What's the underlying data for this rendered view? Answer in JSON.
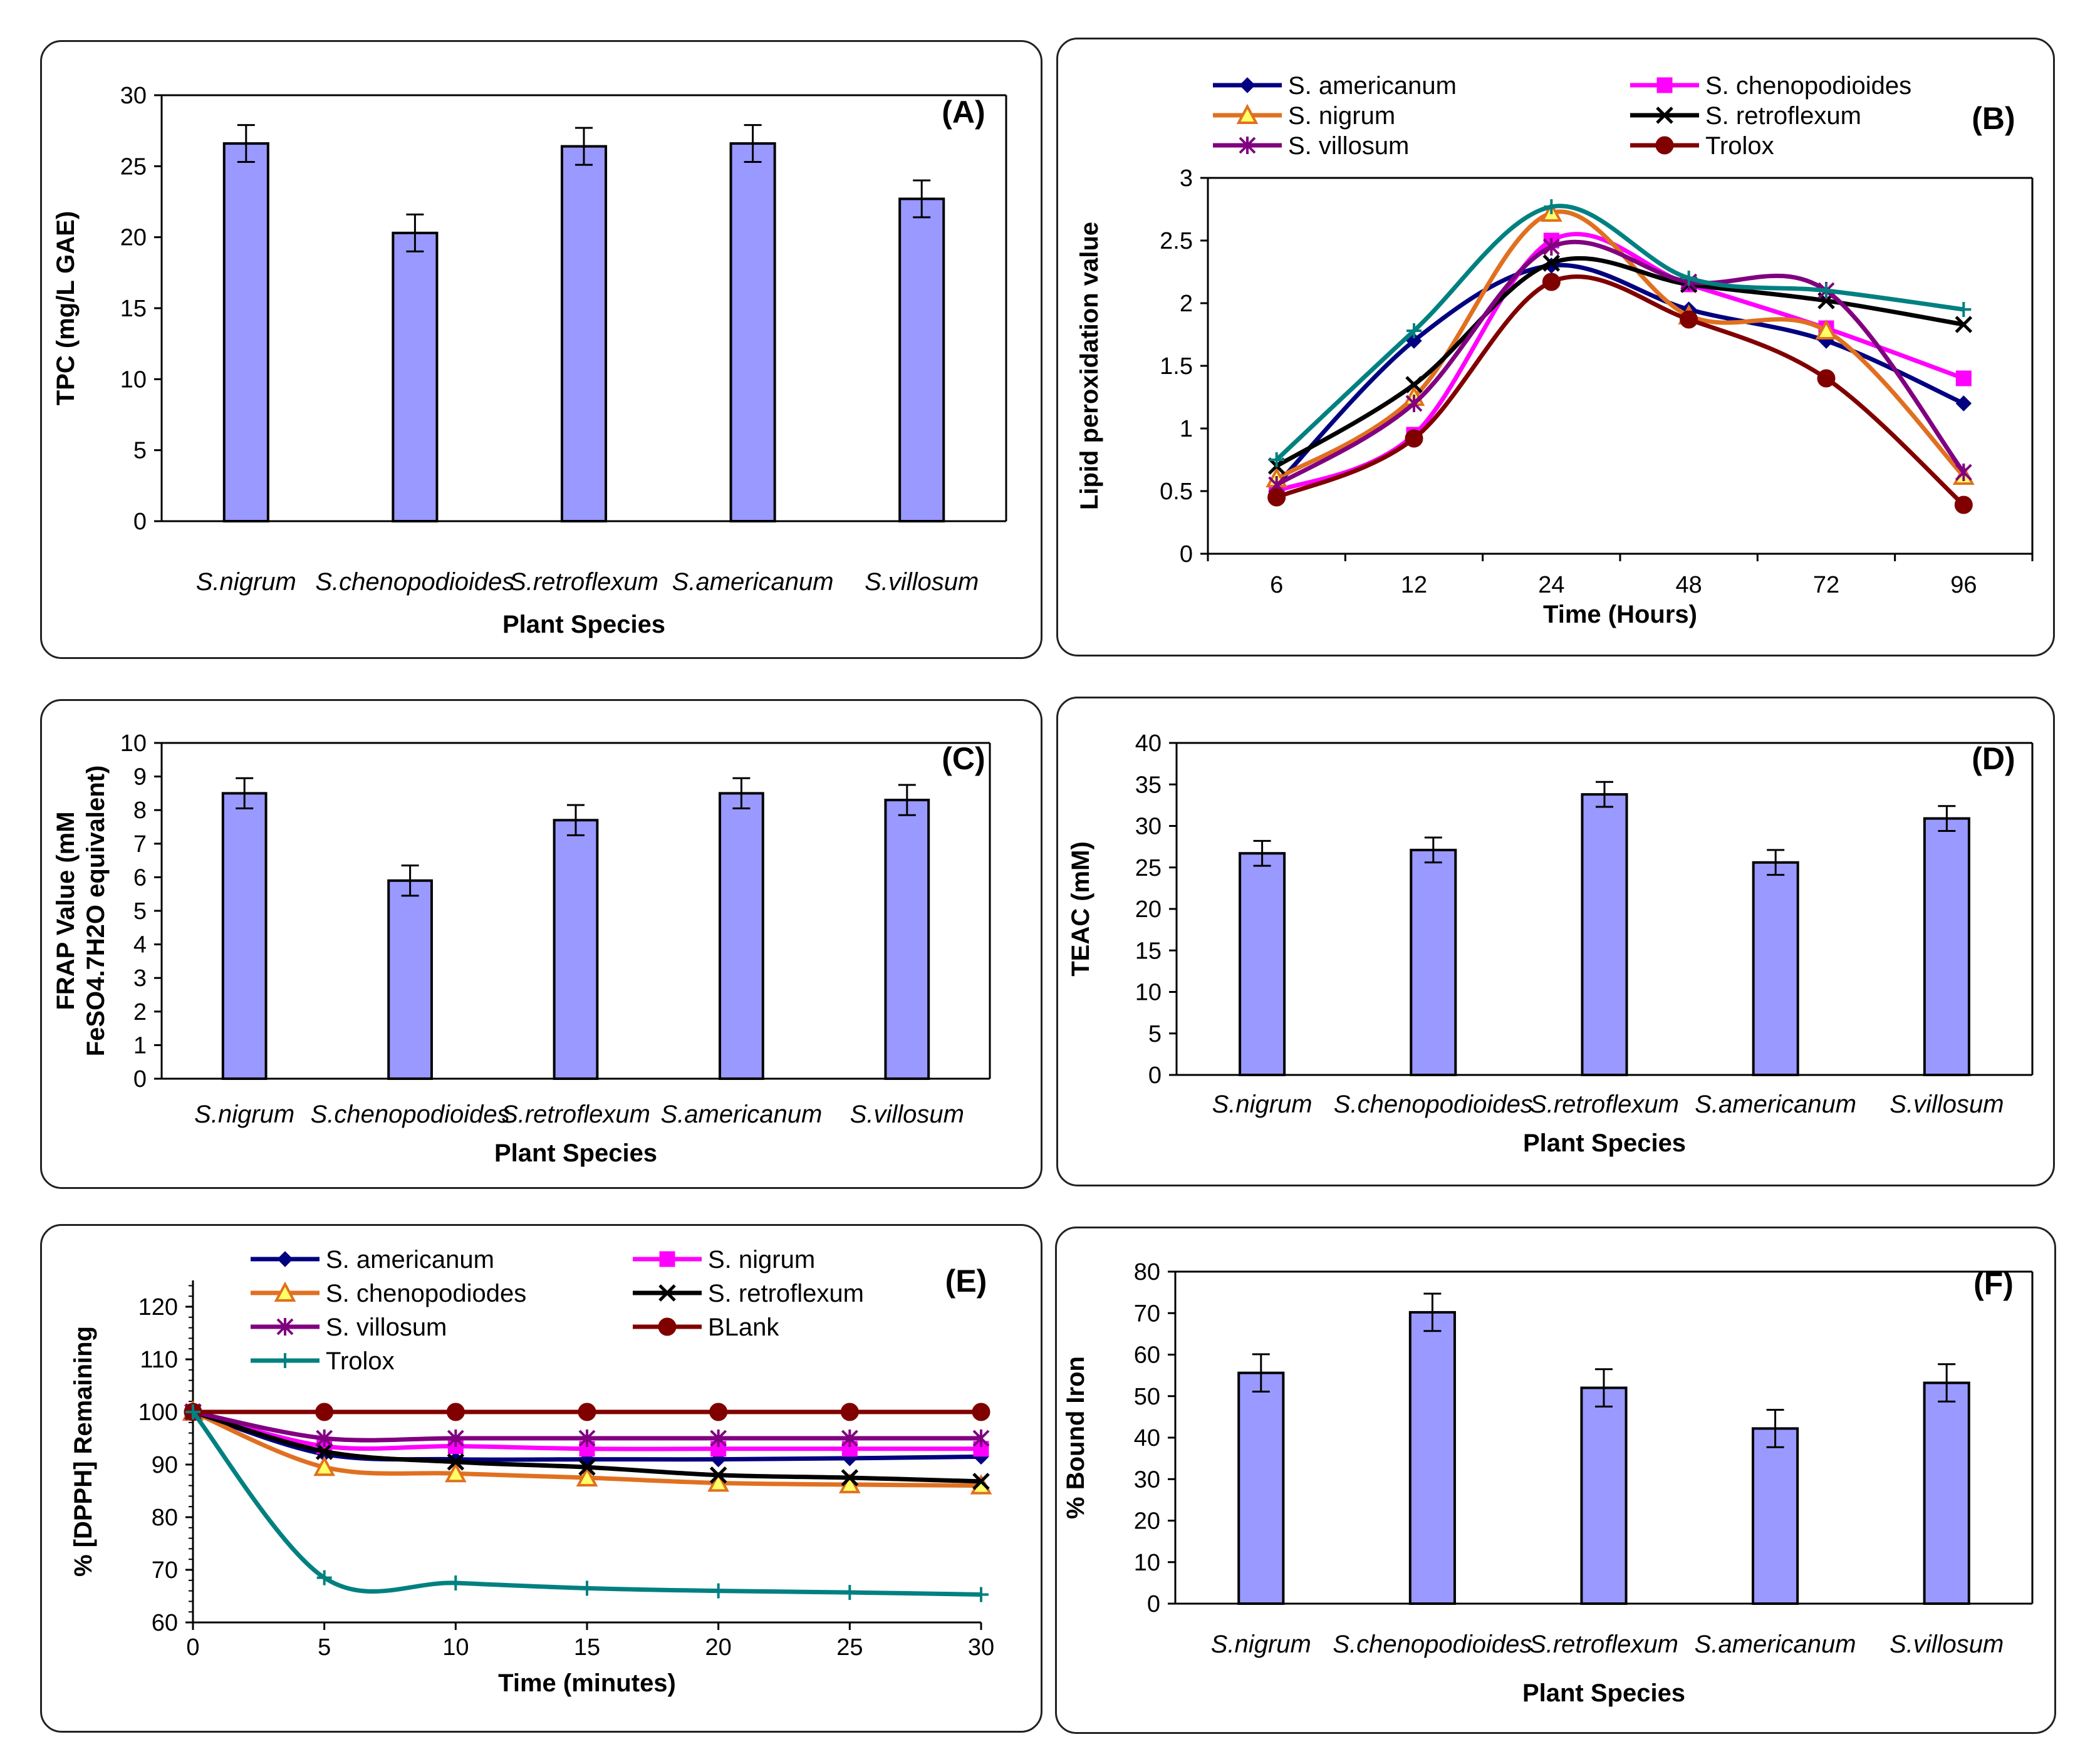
{
  "colors": {
    "bar": "#9999ff"
  },
  "panels": {
    "a": {
      "label": "(A)",
      "chart_data": {
        "type": "bar",
        "categories": [
          "S.nigrum",
          "S.chenopodioides",
          "S.retroflexum",
          "S.americanum",
          "S.villosum"
        ],
        "values": [
          26.6,
          20.3,
          26.4,
          26.6,
          22.7
        ],
        "errors": [
          1.3,
          1.3,
          1.3,
          1.3,
          1.3
        ],
        "xlabel": "Plant Species",
        "ylabel": "TPC (mg/L GAE)",
        "ylim": [
          0,
          30
        ],
        "yticks": [
          0,
          5,
          10,
          15,
          20,
          25,
          30
        ]
      }
    },
    "b": {
      "label": "(B)",
      "chart_data": {
        "type": "line",
        "categories": [
          "6",
          "12",
          "24",
          "48",
          "72",
          "96"
        ],
        "xlabel": "Time (Hours)",
        "ylabel": "Lipid peroxidation value",
        "ylim": [
          0,
          3
        ],
        "yticks": [
          0,
          0.5,
          1,
          1.5,
          2,
          2.5,
          3
        ],
        "series": [
          {
            "name": "S. americanum",
            "color": "#000080",
            "marker": "diamond",
            "values": [
              0.55,
              1.7,
              2.3,
              1.95,
              1.7,
              1.2
            ]
          },
          {
            "name": "S. chenopodioides",
            "color": "#ff00ff",
            "marker": "square",
            "values": [
              0.5,
              0.95,
              2.5,
              2.15,
              1.8,
              1.4
            ]
          },
          {
            "name": "S. nigrum",
            "color": "#e07020",
            "marker": "triangle",
            "values": [
              0.6,
              1.25,
              2.72,
              1.9,
              1.78,
              0.62
            ]
          },
          {
            "name": "S. retroflexum",
            "color": "#000000",
            "marker": "x",
            "values": [
              0.7,
              1.35,
              2.32,
              2.15,
              2.02,
              1.83
            ]
          },
          {
            "name": "S. villosum",
            "color": "#800080",
            "marker": "star",
            "values": [
              0.55,
              1.2,
              2.45,
              2.17,
              2.1,
              0.65
            ]
          },
          {
            "name": "Trolox",
            "color": "#800000",
            "marker": "circle",
            "values": [
              0.45,
              0.92,
              2.17,
              1.87,
              1.4,
              0.39
            ]
          },
          {
            "name": "",
            "color": "#008080",
            "marker": "plus",
            "values": [
              0.75,
              1.78,
              2.77,
              2.2,
              2.1,
              1.95
            ]
          }
        ]
      }
    },
    "c": {
      "label": "(C)",
      "chart_data": {
        "type": "bar",
        "categories": [
          "S.nigrum",
          "S.chenopodioides",
          "S.retroflexum",
          "S.americanum",
          "S.villosum"
        ],
        "values": [
          8.5,
          5.9,
          7.7,
          8.5,
          8.3
        ],
        "errors": [
          0.45,
          0.45,
          0.45,
          0.45,
          0.45
        ],
        "xlabel": "Plant Species",
        "ylabel_lines": [
          "FRAP Value (mM",
          "FeSO4.7H2O equivalent)"
        ],
        "ylim": [
          0,
          10
        ],
        "yticks": [
          0,
          1,
          2,
          3,
          4,
          5,
          6,
          7,
          8,
          9,
          10
        ]
      }
    },
    "d": {
      "label": "(D)",
      "chart_data": {
        "type": "bar",
        "categories": [
          "S.nigrum",
          "S.chenopodioides",
          "S.retroflexum",
          "S.americanum",
          "S.villosum"
        ],
        "values": [
          26.7,
          27.1,
          33.8,
          25.6,
          30.9
        ],
        "errors": [
          1.5,
          1.5,
          1.5,
          1.5,
          1.5
        ],
        "xlabel": "Plant Species",
        "ylabel": "TEAC (mM)",
        "ylim": [
          0,
          40
        ],
        "yticks": [
          0,
          5,
          10,
          15,
          20,
          25,
          30,
          35,
          40
        ]
      }
    },
    "e": {
      "label": "(E)",
      "chart_data": {
        "type": "line",
        "x": [
          0,
          5,
          10,
          15,
          20,
          25,
          30
        ],
        "xlabel": "Time (minutes)",
        "ylabel": "% [DPPH] Remaining",
        "xlim": [
          0,
          30
        ],
        "ylim": [
          60,
          125
        ],
        "yticks": [
          60,
          70,
          80,
          90,
          100,
          110,
          120
        ],
        "xticks": [
          0,
          5,
          10,
          15,
          20,
          25,
          30
        ],
        "series": [
          {
            "name": "S. americanum",
            "color": "#000080",
            "marker": "diamond",
            "values": [
              100,
              92,
              91,
              91,
              91,
              91.2,
              91.5
            ]
          },
          {
            "name": "S. nigrum",
            "color": "#ff00ff",
            "marker": "square",
            "values": [
              100,
              93.5,
              93.5,
              93,
              93,
              93,
              93
            ]
          },
          {
            "name": "S. chenopodiodes",
            "color": "#e07020",
            "marker": "triangle",
            "values": [
              100,
              89.5,
              88.3,
              87.5,
              86.5,
              86.2,
              86
            ]
          },
          {
            "name": "S. retroflexum",
            "color": "#000000",
            "marker": "x",
            "values": [
              100,
              92.5,
              90.5,
              89.5,
              88,
              87.5,
              86.8
            ]
          },
          {
            "name": "S. villosum",
            "color": "#800080",
            "marker": "star",
            "values": [
              100,
              95,
              95,
              95,
              95,
              95,
              95
            ]
          },
          {
            "name": "BLank",
            "color": "#800000",
            "marker": "circle",
            "values": [
              100,
              100,
              100,
              100,
              100,
              100,
              100
            ]
          },
          {
            "name": "Trolox",
            "color": "#008080",
            "marker": "plus",
            "values": [
              100,
              68.5,
              67.5,
              66.5,
              66,
              65.7,
              65.3
            ]
          }
        ]
      }
    },
    "f": {
      "label": "(F)",
      "chart_data": {
        "type": "bar",
        "categories": [
          "S.nigrum",
          "S.chenopodioides",
          "S.retroflexum",
          "S.americanum",
          "S.villosum"
        ],
        "values": [
          55.6,
          70.2,
          52,
          42.2,
          53.2
        ],
        "errors": [
          4.5,
          4.5,
          4.5,
          4.5,
          4.5
        ],
        "xlabel": "Plant Species",
        "ylabel": "% Bound Iron",
        "ylim": [
          0,
          80
        ],
        "yticks": [
          0,
          10,
          20,
          30,
          40,
          50,
          60,
          70,
          80
        ]
      }
    }
  }
}
